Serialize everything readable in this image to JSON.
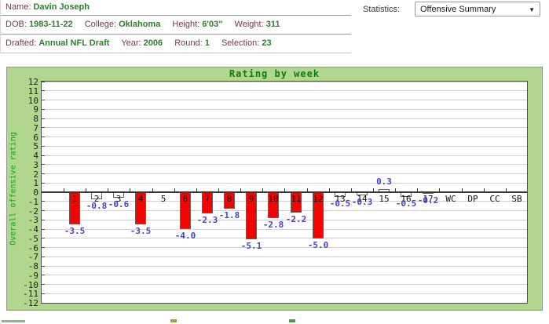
{
  "player": {
    "name_label": "Name:",
    "name": "Davin Joseph",
    "dob_label": "DOB:",
    "dob": "1983-11-22",
    "college_label": "College:",
    "college": "Oklahoma",
    "height_label": "Height:",
    "height": "6'03\"",
    "weight_label": "Weight:",
    "weight": "311",
    "drafted_label": "Drafted:",
    "drafted": "Annual NFL Draft",
    "year_label": "Year:",
    "year": "2006",
    "round_label": "Round:",
    "round": "1",
    "selection_label": "Selection:",
    "selection": "23"
  },
  "statistics": {
    "label": "Statistics:",
    "selected": "Offensive Summary",
    "dropdown_arrow": "▼"
  },
  "chart_data": {
    "type": "bar",
    "title": "Rating by week",
    "ylabel": "Overall offensive rating",
    "ylim": [
      -12,
      12
    ],
    "ytick_step": 1,
    "grid": true,
    "categories": [
      "1",
      "2",
      "3",
      "4",
      "5",
      "6",
      "7",
      "8",
      "9",
      "10",
      "11",
      "12",
      "13",
      "14",
      "15",
      "16",
      "17",
      "WC",
      "DP",
      "CC",
      "SB"
    ],
    "values": [
      -3.5,
      -0.8,
      -0.6,
      -3.5,
      null,
      -4.0,
      -2.3,
      -1.8,
      -5.1,
      -2.8,
      -2.2,
      -5.0,
      -0.5,
      -0.3,
      0.3,
      -0.5,
      -0.2,
      null,
      null,
      null,
      null
    ],
    "value_labels": [
      "-3.5",
      "-0.8",
      "-0.6",
      "-3.5",
      null,
      "-4.0",
      "-2.3",
      "-1.8",
      "-5.1",
      "-2.8",
      "-2.2",
      "-5.0",
      "-0.5",
      "-0.3",
      "0.3",
      "-0.5",
      "-0.2",
      null,
      null,
      null,
      null
    ],
    "bar_styles": [
      "red",
      "white",
      "white",
      "red",
      "none",
      "red",
      "red",
      "red",
      "red",
      "red",
      "red",
      "red",
      "white",
      "white",
      "white",
      "white",
      "gray",
      "none",
      "none",
      "none",
      "none"
    ],
    "colors": {
      "box_background": "#b1d78e",
      "bar_red": "#f20500",
      "bar_white": "#ffffff",
      "bar_gray": "#b3b1b1",
      "value_label_blue": "#4343cd",
      "title_green": "#0b7d10",
      "axis_label_green": "#14a014"
    }
  }
}
